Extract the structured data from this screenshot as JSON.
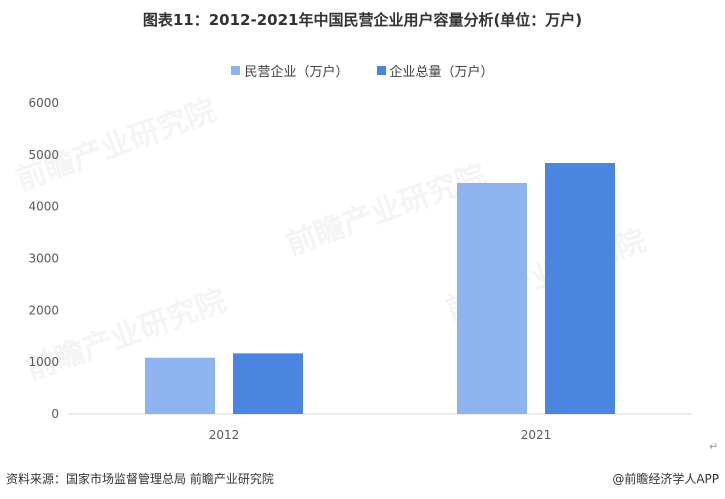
{
  "title": "图表11：2012-2021年中国民营企业用户容量分析(单位：万户)",
  "watermark_text": "前瞻产业研究院",
  "source_text": "资料来源：国家市场监督管理总局 前瞻产业研究院",
  "credit_text": "@前瞻经济学人APP",
  "colors": {
    "series_private": "#8db4ef",
    "series_total": "#4a86e0",
    "axis": "#d9d9d9",
    "text": "#595959"
  },
  "chart_data": {
    "type": "bar",
    "title": "图表11：2012-2021年中国民营企业用户容量分析(单位：万户)",
    "categories": [
      "2012",
      "2021"
    ],
    "series": [
      {
        "name": "民营企业（万户）",
        "values": [
          1086,
          4457
        ]
      },
      {
        "name": "企业总量（万户）",
        "values": [
          1170,
          4842
        ]
      }
    ],
    "ylim": [
      0,
      6000
    ],
    "yticks": [
      "0",
      "1000",
      "2000",
      "3000",
      "4000",
      "5000",
      "6000"
    ],
    "xlabel": "",
    "ylabel": "",
    "grid": false,
    "legend_position": "top"
  }
}
